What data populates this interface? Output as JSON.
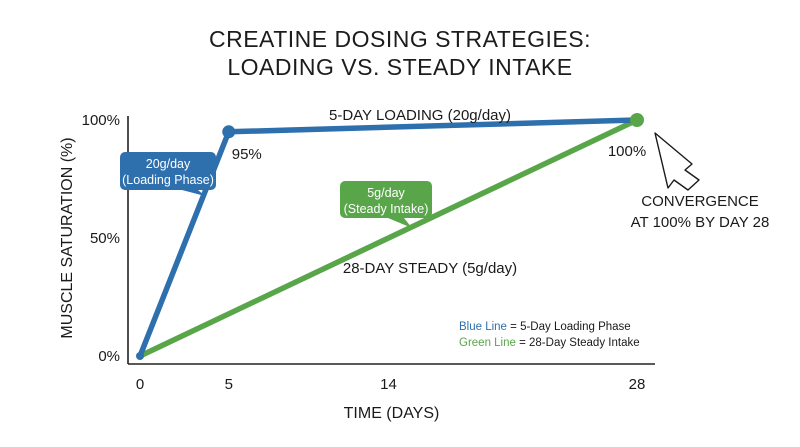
{
  "title_lines": [
    "CREATINE DOSING STRATEGIES:",
    "LOADING VS. STEADY INTAKE"
  ],
  "chart_data": {
    "type": "line",
    "xlabel": "TIME (DAYS)",
    "ylabel": "MUSCLE SATURATION (%)",
    "xlim": [
      0,
      28
    ],
    "ylim": [
      0,
      100
    ],
    "x_ticks": [
      0,
      5,
      14,
      28
    ],
    "y_ticks": [
      0,
      50,
      100
    ],
    "x_tick_labels": [
      "0",
      "5",
      "14",
      "28"
    ],
    "y_tick_labels": [
      "0%",
      "50%",
      "100%"
    ],
    "grid": false,
    "series": [
      {
        "name": "5-DAY LOADING (20g/day)",
        "color": "#2e6fad",
        "points": [
          {
            "x": 0,
            "y": 0
          },
          {
            "x": 5,
            "y": 95
          },
          {
            "x": 28,
            "y": 100
          }
        ]
      },
      {
        "name": "28-DAY STEADY (5g/day)",
        "color": "#59a64a",
        "points": [
          {
            "x": 0,
            "y": 0
          },
          {
            "x": 28,
            "y": 100
          }
        ]
      }
    ],
    "point_labels": [
      {
        "x": 5,
        "y": 95,
        "text": "95%",
        "color": "#2e6fad"
      },
      {
        "x": 28,
        "y": 100,
        "text": "100%",
        "color": "#59a64a"
      }
    ],
    "callouts": [
      {
        "lines": [
          "20g/day",
          "(Loading Phase)"
        ],
        "color": "#2e6fad"
      },
      {
        "lines": [
          "5g/day",
          "(Steady Intake)"
        ],
        "color": "#59a64a"
      }
    ],
    "annotation": {
      "lines": [
        "CONVERGENCE",
        "AT 100% BY DAY 28"
      ]
    },
    "legend": {
      "position": "bottom-right",
      "entries": [
        {
          "key": "Blue Line",
          "text": " = 5-Day Loading Phase",
          "color": "#2e6fad"
        },
        {
          "key": "Green Line",
          "text": " = 28-Day Steady Intake",
          "color": "#59a64a"
        }
      ]
    }
  }
}
